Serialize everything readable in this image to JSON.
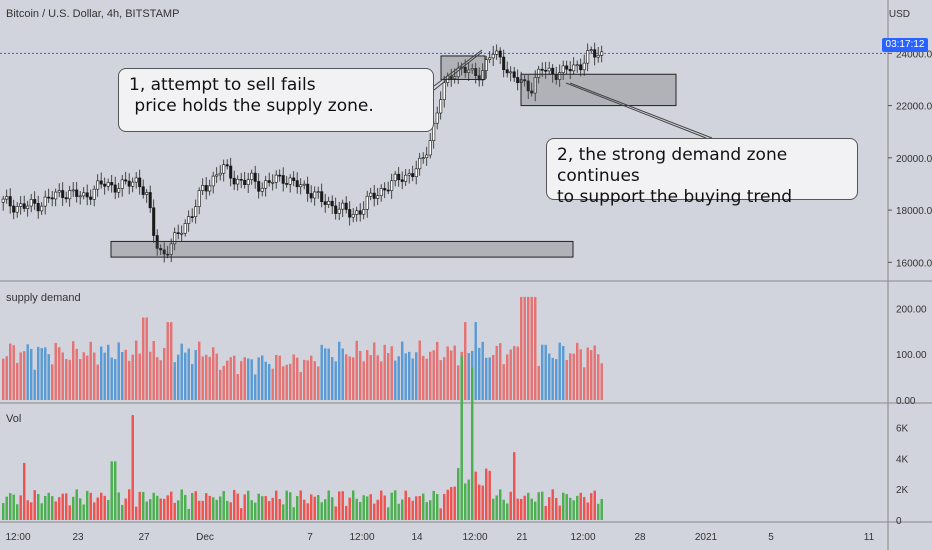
{
  "header": {
    "title": "Bitcoin / U.S. Dollar, 4h, BITSTAMP"
  },
  "price_axis": {
    "unit": "USD",
    "ticks": [
      "24000.00",
      "22000.00",
      "20000.00",
      "18000.00",
      "16000.00"
    ],
    "current_tag": "03:17:12"
  },
  "callouts": {
    "one": [
      "1, attempt to sell fails",
      " price holds the supply zone."
    ],
    "two": [
      "2, the strong demand zone continues",
      "to support the buying trend"
    ]
  },
  "panes": {
    "supply_demand": {
      "label": "supply demand",
      "ticks": [
        "200.00",
        "100.00",
        "0.00"
      ]
    },
    "volume": {
      "label": "Vol",
      "ticks": [
        "6K",
        "4K",
        "2K",
        "0"
      ]
    }
  },
  "time_axis": [
    "12:00",
    "23",
    "27",
    "Dec",
    "7",
    "12:00",
    "14",
    "12:00",
    "21",
    "12:00",
    "28",
    "2021",
    "5",
    "11"
  ],
  "colors": {
    "up": "#26a69a",
    "down": "#ef5350",
    "sd_blue": "#5b9bd5",
    "sd_red": "#e57373",
    "vol_green": "#4caf50",
    "vol_red": "#ef5350",
    "tag": "#2962ff"
  },
  "chart_data": {
    "type": "candlestick",
    "price_line": 24000,
    "price_ylim": [
      15400,
      25200
    ],
    "price_path": [
      [
        0,
        18300
      ],
      [
        4,
        18100
      ],
      [
        8,
        18300
      ],
      [
        12,
        18700
      ],
      [
        16,
        18500
      ],
      [
        20,
        19000
      ],
      [
        24,
        18900
      ],
      [
        27,
        19200
      ],
      [
        29,
        18400
      ],
      [
        30,
        17200
      ],
      [
        31,
        16600
      ],
      [
        32,
        16300
      ],
      [
        34,
        16700
      ],
      [
        36,
        17400
      ],
      [
        38,
        17900
      ],
      [
        40,
        18800
      ],
      [
        42,
        19200
      ],
      [
        44,
        19600
      ],
      [
        46,
        19300
      ],
      [
        48,
        19000
      ],
      [
        50,
        19200
      ],
      [
        52,
        18900
      ],
      [
        54,
        19100
      ],
      [
        56,
        19300
      ],
      [
        58,
        19000
      ],
      [
        60,
        18900
      ],
      [
        62,
        18700
      ],
      [
        64,
        18300
      ],
      [
        66,
        18200
      ],
      [
        68,
        18000
      ],
      [
        70,
        17800
      ],
      [
        72,
        18100
      ],
      [
        74,
        18500
      ],
      [
        76,
        18800
      ],
      [
        78,
        19000
      ],
      [
        80,
        19300
      ],
      [
        82,
        19400
      ],
      [
        84,
        19800
      ],
      [
        86,
        21000
      ],
      [
        88,
        22500
      ],
      [
        90,
        23300
      ],
      [
        92,
        23400
      ],
      [
        94,
        23200
      ],
      [
        96,
        23300
      ],
      [
        98,
        24000
      ],
      [
        100,
        23800
      ],
      [
        102,
        23000
      ],
      [
        104,
        22900
      ],
      [
        106,
        22700
      ],
      [
        108,
        23400
      ],
      [
        110,
        23300
      ],
      [
        112,
        23200
      ],
      [
        114,
        23500
      ],
      [
        116,
        23600
      ],
      [
        118,
        24000
      ],
      [
        120,
        24000
      ]
    ],
    "zones": [
      {
        "role": "supply",
        "x0": 0.71,
        "x1": 0.78,
        "y0": 23000,
        "y1": 23900
      },
      {
        "role": "demand",
        "x0": 0.8,
        "x1": 1.06,
        "y0": 22000,
        "y1": 23200
      },
      {
        "role": "base",
        "x0": 0.178,
        "x1": 0.925,
        "y0": 16200,
        "y1": 16800
      }
    ],
    "supply_demand_ylim": [
      0,
      240
    ],
    "volume_ylim": [
      0,
      7000
    ]
  }
}
